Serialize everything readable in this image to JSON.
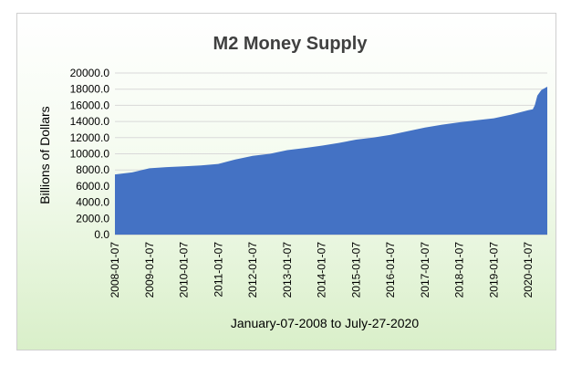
{
  "chart_data": {
    "type": "area",
    "title": "M2 Money Supply",
    "xlabel": "January-07-2008 to July-27-2020",
    "ylabel": "Billions of Dollars",
    "ylim": [
      0,
      20000
    ],
    "yticks": [
      "0.0",
      "2000.0",
      "4000.0",
      "6000.0",
      "8000.0",
      "10000.0",
      "12000.0",
      "14000.0",
      "16000.0",
      "18000.0",
      "20000.0"
    ],
    "xticks": [
      "2008-01-07",
      "2009-01-07",
      "2010-01-07",
      "2011-01-07",
      "2012-01-07",
      "2013-01-07",
      "2014-01-07",
      "2015-01-07",
      "2016-01-07",
      "2017-01-07",
      "2018-01-07",
      "2019-01-07",
      "2020-01-07"
    ],
    "grid": true,
    "legend": "none",
    "color": "#4472c4",
    "points": [
      {
        "x": "2008-01-07",
        "y": 7450
      },
      {
        "x": "2008-07-07",
        "y": 7700
      },
      {
        "x": "2009-01-07",
        "y": 8200
      },
      {
        "x": "2009-07-07",
        "y": 8350
      },
      {
        "x": "2010-01-07",
        "y": 8450
      },
      {
        "x": "2010-07-07",
        "y": 8550
      },
      {
        "x": "2011-01-07",
        "y": 8750
      },
      {
        "x": "2011-07-07",
        "y": 9300
      },
      {
        "x": "2012-01-07",
        "y": 9750
      },
      {
        "x": "2012-07-07",
        "y": 10000
      },
      {
        "x": "2013-01-07",
        "y": 10450
      },
      {
        "x": "2013-07-07",
        "y": 10700
      },
      {
        "x": "2014-01-07",
        "y": 11000
      },
      {
        "x": "2014-07-07",
        "y": 11350
      },
      {
        "x": "2015-01-07",
        "y": 11750
      },
      {
        "x": "2015-07-07",
        "y": 12000
      },
      {
        "x": "2016-01-07",
        "y": 12350
      },
      {
        "x": "2016-07-07",
        "y": 12800
      },
      {
        "x": "2017-01-07",
        "y": 13250
      },
      {
        "x": "2017-07-07",
        "y": 13600
      },
      {
        "x": "2018-01-07",
        "y": 13900
      },
      {
        "x": "2018-07-07",
        "y": 14150
      },
      {
        "x": "2019-01-07",
        "y": 14400
      },
      {
        "x": "2019-07-07",
        "y": 14850
      },
      {
        "x": "2020-01-07",
        "y": 15400
      },
      {
        "x": "2020-02-24",
        "y": 15500
      },
      {
        "x": "2020-03-16",
        "y": 16000
      },
      {
        "x": "2020-04-13",
        "y": 17200
      },
      {
        "x": "2020-05-25",
        "y": 17900
      },
      {
        "x": "2020-07-27",
        "y": 18300
      }
    ]
  }
}
